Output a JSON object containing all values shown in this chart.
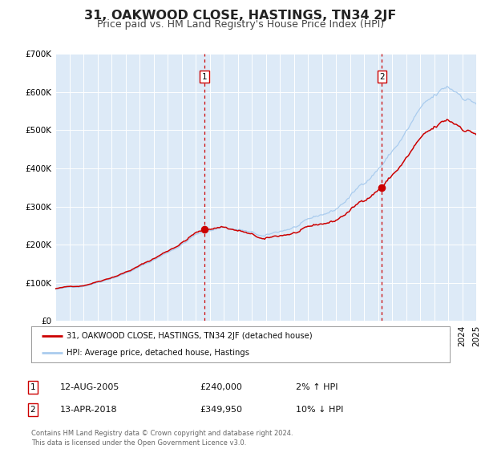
{
  "title": "31, OAKWOOD CLOSE, HASTINGS, TN34 2JF",
  "subtitle": "Price paid vs. HM Land Registry's House Price Index (HPI)",
  "x_start_year": 1995,
  "x_end_year": 2025,
  "ylim": [
    0,
    700000
  ],
  "yticks": [
    0,
    100000,
    200000,
    300000,
    400000,
    500000,
    600000,
    700000
  ],
  "ytick_labels": [
    "£0",
    "£100K",
    "£200K",
    "£300K",
    "£400K",
    "£500K",
    "£600K",
    "£700K"
  ],
  "sale1": {
    "year": 2005.617,
    "price": 240000,
    "label": "1",
    "date": "12-AUG-2005",
    "pct": "2%",
    "direction": "↑"
  },
  "sale2": {
    "year": 2018.283,
    "price": 349950,
    "label": "2",
    "date": "13-APR-2018",
    "pct": "10%",
    "direction": "↓"
  },
  "hpi_line_color": "#aaccee",
  "price_line_color": "#cc0000",
  "dot_color": "#cc0000",
  "vline_color": "#cc0000",
  "plot_bg_color": "#ddeaf7",
  "legend_label_price": "31, OAKWOOD CLOSE, HASTINGS, TN34 2JF (detached house)",
  "legend_label_hpi": "HPI: Average price, detached house, Hastings",
  "footer": "Contains HM Land Registry data © Crown copyright and database right 2024.\nThis data is licensed under the Open Government Licence v3.0.",
  "title_fontsize": 11.5,
  "subtitle_fontsize": 9,
  "tick_fontsize": 7.5
}
